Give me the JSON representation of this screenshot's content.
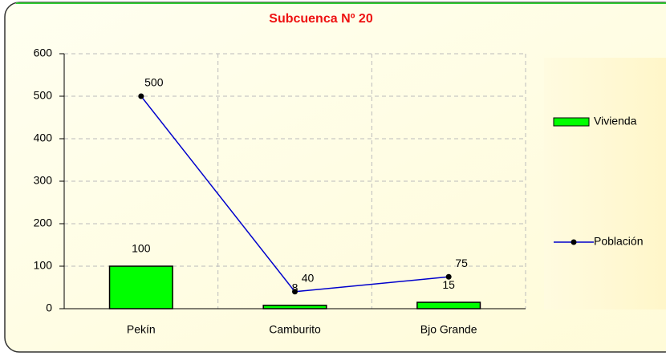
{
  "chart_data": {
    "type": "bar",
    "title": "Subcuenca Nº 20",
    "categories": [
      "Pekín",
      "Camburito",
      "Bjo Grande"
    ],
    "series": [
      {
        "name": "Vivienda",
        "type": "bar",
        "color": "#00ff00",
        "values": [
          100,
          8,
          15
        ]
      },
      {
        "name": "Población",
        "type": "line",
        "color": "#0000cc",
        "values": [
          500,
          40,
          75
        ]
      }
    ],
    "ylim": [
      0,
      600
    ],
    "yticks": [
      0,
      100,
      200,
      300,
      400,
      500,
      600
    ],
    "grid": true,
    "legend": "right"
  }
}
